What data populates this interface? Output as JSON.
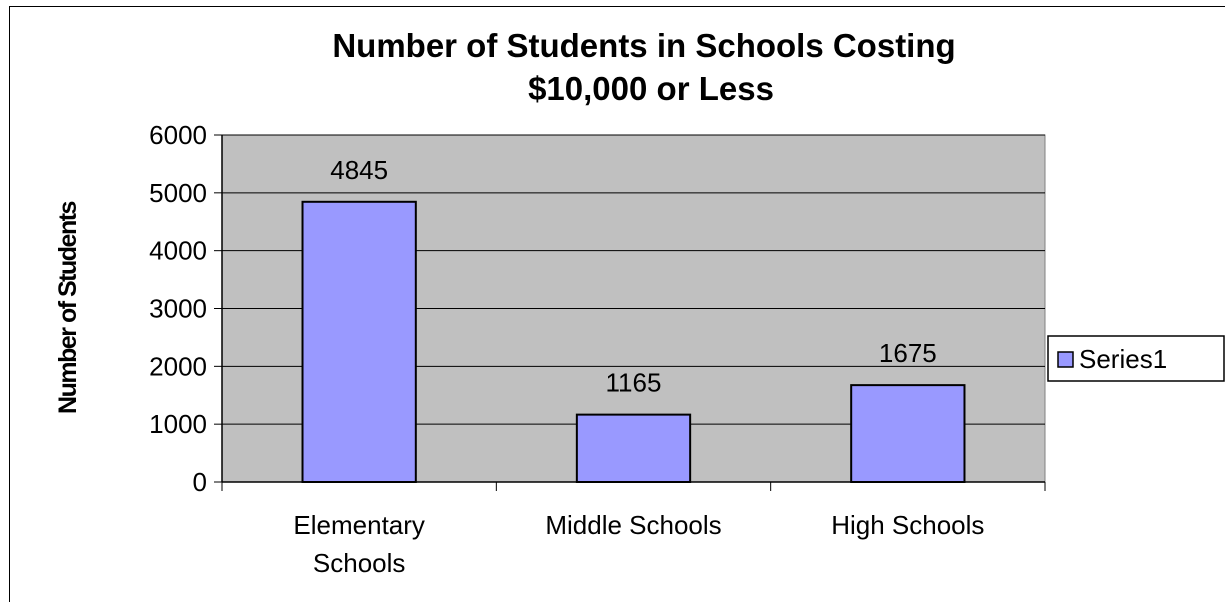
{
  "chart_data": {
    "type": "bar",
    "title_lines": [
      "Number of Students in Schools Costing",
      "$10,000 or Less"
    ],
    "xlabel": "",
    "ylabel": "Number of Students",
    "categories": [
      [
        "Elementary",
        "Schools"
      ],
      [
        "Middle Schools"
      ],
      [
        "High Schools"
      ]
    ],
    "series": [
      {
        "name": "Series1",
        "values": [
          4845,
          1165,
          1675
        ]
      }
    ],
    "ylim": [
      0,
      6000
    ],
    "yticks": [
      0,
      1000,
      2000,
      3000,
      4000,
      5000,
      6000
    ],
    "data_labels": [
      "4845",
      "1165",
      "1675"
    ],
    "grid": true,
    "legend_position": "right",
    "colors": {
      "plot_background": "#c0c0c0",
      "bar_fill": "#9999ff",
      "bar_stroke": "#000000",
      "gridline": "#000000"
    }
  }
}
